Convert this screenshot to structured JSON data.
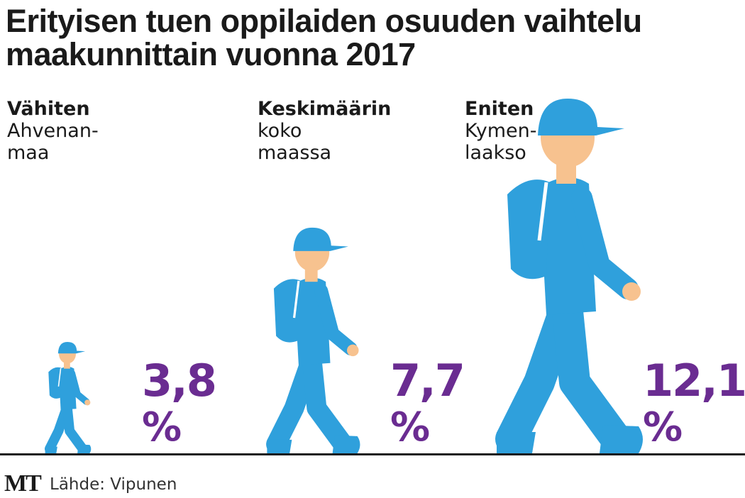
{
  "title": "Erityisen tuen oppilaiden osuuden vaihtelu maakunnittain vuonna 2017",
  "colors": {
    "figure": "#2fa0dc",
    "skin": "#f7c28f",
    "value": "#6a2c91",
    "text": "#1a1a1a"
  },
  "chart_data": {
    "type": "bar",
    "title": "Erityisen tuen oppilaiden osuuden vaihtelu maakunnittain vuonna 2017",
    "unit": "%",
    "categories": [
      "Vähiten Ahvenanmaa",
      "Keskimäärin koko maassa",
      "Eniten Kymenlaakso"
    ],
    "values": [
      3.8,
      7.7,
      12.1
    ],
    "items": [
      {
        "heading": "Vähiten",
        "region_lines": [
          "Ahvenan-",
          "maa"
        ],
        "value": 3.8,
        "value_label": "3,8",
        "unit_label": "%"
      },
      {
        "heading": "Keskimäärin",
        "region_lines": [
          "koko",
          "maassa"
        ],
        "value": 7.7,
        "value_label": "7,7",
        "unit_label": "%"
      },
      {
        "heading": "Eniten",
        "region_lines": [
          "Kymen-",
          "laakso"
        ],
        "value": 12.1,
        "value_label": "12,1",
        "unit_label": "%"
      }
    ]
  },
  "footer": {
    "logo": "MT",
    "source": "Lähde: Vipunen"
  }
}
